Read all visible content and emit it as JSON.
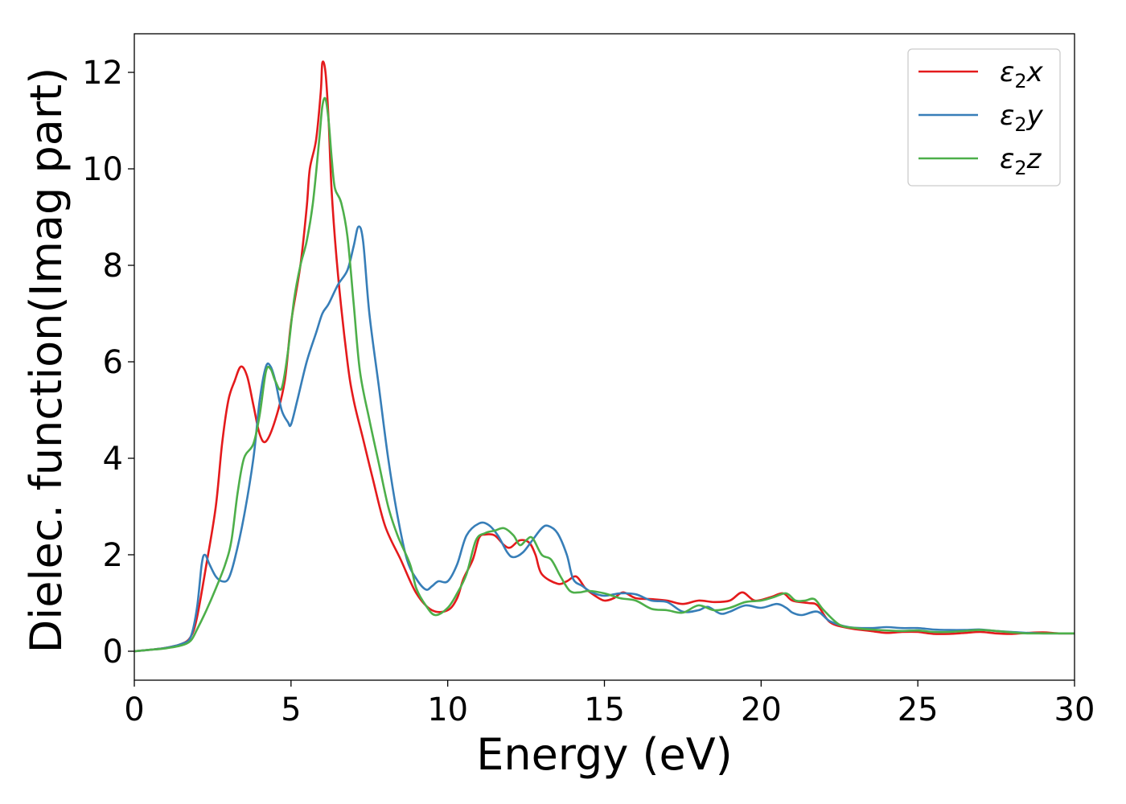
{
  "chart_data": {
    "type": "line",
    "title": "",
    "xlabel": "Energy (eV)",
    "ylabel": "Dielec. function(Imag part)",
    "xlim": [
      0,
      30
    ],
    "ylim": [
      -0.6,
      12.8
    ],
    "x_ticks": [
      0,
      5,
      10,
      15,
      20,
      25,
      30
    ],
    "y_ticks": [
      0,
      2,
      4,
      6,
      8,
      10,
      12
    ],
    "x_tick_labels": [
      "0",
      "5",
      "10",
      "15",
      "20",
      "25",
      "30"
    ],
    "y_tick_labels": [
      "0",
      "2",
      "4",
      "6",
      "8",
      "10",
      "12"
    ],
    "grid": false,
    "legend": {
      "position": "top-right",
      "entries": [
        {
          "symbol": "ε",
          "sub": "2",
          "axis": "x"
        },
        {
          "symbol": "ε",
          "sub": "2",
          "axis": "y"
        },
        {
          "symbol": "ε",
          "sub": "2",
          "axis": "z"
        }
      ]
    },
    "series": [
      {
        "color": "#e41a1c",
        "points": [
          [
            0,
            0
          ],
          [
            0.5,
            0.03
          ],
          [
            1.0,
            0.07
          ],
          [
            1.5,
            0.15
          ],
          [
            1.8,
            0.3
          ],
          [
            2.0,
            0.7
          ],
          [
            2.3,
            1.8
          ],
          [
            2.6,
            3.0
          ],
          [
            2.8,
            4.3
          ],
          [
            3.0,
            5.2
          ],
          [
            3.2,
            5.6
          ],
          [
            3.4,
            5.9
          ],
          [
            3.6,
            5.7
          ],
          [
            3.8,
            5.1
          ],
          [
            4.0,
            4.5
          ],
          [
            4.2,
            4.35
          ],
          [
            4.5,
            4.8
          ],
          [
            4.8,
            5.6
          ],
          [
            5.0,
            6.8
          ],
          [
            5.3,
            8.0
          ],
          [
            5.5,
            9.2
          ],
          [
            5.6,
            10.0
          ],
          [
            5.8,
            10.6
          ],
          [
            5.95,
            11.6
          ],
          [
            6.0,
            12.2
          ],
          [
            6.1,
            12.0
          ],
          [
            6.2,
            11.0
          ],
          [
            6.3,
            9.5
          ],
          [
            6.5,
            7.8
          ],
          [
            6.8,
            6.0
          ],
          [
            7.0,
            5.2
          ],
          [
            7.3,
            4.4
          ],
          [
            7.6,
            3.6
          ],
          [
            8.0,
            2.6
          ],
          [
            8.5,
            1.9
          ],
          [
            9.0,
            1.2
          ],
          [
            9.5,
            0.85
          ],
          [
            10.0,
            0.85
          ],
          [
            10.3,
            1.1
          ],
          [
            10.5,
            1.5
          ],
          [
            10.8,
            1.9
          ],
          [
            11.0,
            2.35
          ],
          [
            11.2,
            2.42
          ],
          [
            11.5,
            2.4
          ],
          [
            11.8,
            2.2
          ],
          [
            12.0,
            2.15
          ],
          [
            12.3,
            2.3
          ],
          [
            12.6,
            2.25
          ],
          [
            12.8,
            2.0
          ],
          [
            13.0,
            1.6
          ],
          [
            13.5,
            1.4
          ],
          [
            13.8,
            1.45
          ],
          [
            14.1,
            1.55
          ],
          [
            14.4,
            1.3
          ],
          [
            14.7,
            1.15
          ],
          [
            15.0,
            1.05
          ],
          [
            15.3,
            1.1
          ],
          [
            15.6,
            1.22
          ],
          [
            16.0,
            1.1
          ],
          [
            16.5,
            1.08
          ],
          [
            17.0,
            1.05
          ],
          [
            17.5,
            0.98
          ],
          [
            18.0,
            1.05
          ],
          [
            18.5,
            1.02
          ],
          [
            19.0,
            1.05
          ],
          [
            19.4,
            1.22
          ],
          [
            19.8,
            1.05
          ],
          [
            20.3,
            1.12
          ],
          [
            20.7,
            1.2
          ],
          [
            21.0,
            1.05
          ],
          [
            21.5,
            1.0
          ],
          [
            21.8,
            0.95
          ],
          [
            22.2,
            0.6
          ],
          [
            22.8,
            0.48
          ],
          [
            23.5,
            0.42
          ],
          [
            24.0,
            0.38
          ],
          [
            24.5,
            0.4
          ],
          [
            25.0,
            0.4
          ],
          [
            25.5,
            0.36
          ],
          [
            26.0,
            0.36
          ],
          [
            26.5,
            0.38
          ],
          [
            27.0,
            0.4
          ],
          [
            27.5,
            0.37
          ],
          [
            28.0,
            0.36
          ],
          [
            28.5,
            0.38
          ],
          [
            29.0,
            0.39
          ],
          [
            29.5,
            0.37
          ],
          [
            30.0,
            0.37
          ]
        ]
      },
      {
        "color": "#377eb8",
        "points": [
          [
            0,
            0
          ],
          [
            0.5,
            0.03
          ],
          [
            1.0,
            0.07
          ],
          [
            1.5,
            0.15
          ],
          [
            1.8,
            0.3
          ],
          [
            2.0,
            0.9
          ],
          [
            2.15,
            1.8
          ],
          [
            2.25,
            2.0
          ],
          [
            2.4,
            1.8
          ],
          [
            2.6,
            1.55
          ],
          [
            2.8,
            1.45
          ],
          [
            3.0,
            1.5
          ],
          [
            3.2,
            1.9
          ],
          [
            3.5,
            2.8
          ],
          [
            3.8,
            4.0
          ],
          [
            4.0,
            5.2
          ],
          [
            4.2,
            5.9
          ],
          [
            4.35,
            5.9
          ],
          [
            4.5,
            5.6
          ],
          [
            4.7,
            5.0
          ],
          [
            4.9,
            4.75
          ],
          [
            5.0,
            4.7
          ],
          [
            5.2,
            5.2
          ],
          [
            5.5,
            6.0
          ],
          [
            5.8,
            6.6
          ],
          [
            6.0,
            7.0
          ],
          [
            6.2,
            7.2
          ],
          [
            6.5,
            7.6
          ],
          [
            6.8,
            7.9
          ],
          [
            7.0,
            8.4
          ],
          [
            7.15,
            8.8
          ],
          [
            7.3,
            8.5
          ],
          [
            7.5,
            7.0
          ],
          [
            7.8,
            5.5
          ],
          [
            8.1,
            4.0
          ],
          [
            8.4,
            2.8
          ],
          [
            8.7,
            1.9
          ],
          [
            9.0,
            1.5
          ],
          [
            9.3,
            1.28
          ],
          [
            9.5,
            1.35
          ],
          [
            9.7,
            1.45
          ],
          [
            10.0,
            1.45
          ],
          [
            10.3,
            1.8
          ],
          [
            10.6,
            2.4
          ],
          [
            11.0,
            2.65
          ],
          [
            11.3,
            2.62
          ],
          [
            11.6,
            2.4
          ],
          [
            11.9,
            2.05
          ],
          [
            12.1,
            1.95
          ],
          [
            12.4,
            2.05
          ],
          [
            12.7,
            2.3
          ],
          [
            13.0,
            2.55
          ],
          [
            13.2,
            2.6
          ],
          [
            13.5,
            2.45
          ],
          [
            13.8,
            2.0
          ],
          [
            14.0,
            1.5
          ],
          [
            14.3,
            1.35
          ],
          [
            14.6,
            1.22
          ],
          [
            15.0,
            1.15
          ],
          [
            15.5,
            1.2
          ],
          [
            16.0,
            1.18
          ],
          [
            16.5,
            1.05
          ],
          [
            17.0,
            1.02
          ],
          [
            17.5,
            0.82
          ],
          [
            18.0,
            0.85
          ],
          [
            18.3,
            0.92
          ],
          [
            18.7,
            0.78
          ],
          [
            19.0,
            0.82
          ],
          [
            19.5,
            0.95
          ],
          [
            20.0,
            0.9
          ],
          [
            20.5,
            0.98
          ],
          [
            20.8,
            0.9
          ],
          [
            21.0,
            0.8
          ],
          [
            21.3,
            0.75
          ],
          [
            21.8,
            0.82
          ],
          [
            22.2,
            0.62
          ],
          [
            22.8,
            0.5
          ],
          [
            23.5,
            0.48
          ],
          [
            24.0,
            0.5
          ],
          [
            24.5,
            0.48
          ],
          [
            25.0,
            0.48
          ],
          [
            25.5,
            0.45
          ],
          [
            26.0,
            0.44
          ],
          [
            26.5,
            0.44
          ],
          [
            27.0,
            0.45
          ],
          [
            27.5,
            0.42
          ],
          [
            28.0,
            0.4
          ],
          [
            28.5,
            0.38
          ],
          [
            29.0,
            0.37
          ],
          [
            29.5,
            0.37
          ],
          [
            30.0,
            0.37
          ]
        ]
      },
      {
        "color": "#4daf4a",
        "points": [
          [
            0,
            0
          ],
          [
            0.5,
            0.03
          ],
          [
            1.0,
            0.06
          ],
          [
            1.5,
            0.12
          ],
          [
            1.8,
            0.22
          ],
          [
            2.0,
            0.45
          ],
          [
            2.3,
            0.85
          ],
          [
            2.6,
            1.3
          ],
          [
            2.9,
            1.8
          ],
          [
            3.1,
            2.3
          ],
          [
            3.3,
            3.3
          ],
          [
            3.5,
            4.0
          ],
          [
            3.8,
            4.3
          ],
          [
            4.0,
            4.9
          ],
          [
            4.2,
            5.8
          ],
          [
            4.35,
            5.85
          ],
          [
            4.5,
            5.6
          ],
          [
            4.7,
            5.45
          ],
          [
            4.9,
            6.2
          ],
          [
            5.1,
            7.3
          ],
          [
            5.3,
            8.0
          ],
          [
            5.5,
            8.5
          ],
          [
            5.7,
            9.3
          ],
          [
            5.9,
            10.6
          ],
          [
            6.0,
            11.3
          ],
          [
            6.1,
            11.45
          ],
          [
            6.2,
            11.0
          ],
          [
            6.3,
            10.2
          ],
          [
            6.4,
            9.6
          ],
          [
            6.6,
            9.3
          ],
          [
            6.8,
            8.6
          ],
          [
            7.0,
            7.2
          ],
          [
            7.2,
            5.8
          ],
          [
            7.5,
            4.8
          ],
          [
            7.8,
            3.9
          ],
          [
            8.1,
            3.0
          ],
          [
            8.4,
            2.4
          ],
          [
            8.8,
            1.8
          ],
          [
            9.0,
            1.3
          ],
          [
            9.3,
            0.95
          ],
          [
            9.6,
            0.75
          ],
          [
            10.0,
            0.9
          ],
          [
            10.3,
            1.2
          ],
          [
            10.6,
            1.6
          ],
          [
            10.9,
            2.3
          ],
          [
            11.2,
            2.45
          ],
          [
            11.5,
            2.5
          ],
          [
            11.8,
            2.55
          ],
          [
            12.1,
            2.4
          ],
          [
            12.3,
            2.2
          ],
          [
            12.5,
            2.3
          ],
          [
            12.7,
            2.35
          ],
          [
            13.0,
            2.0
          ],
          [
            13.3,
            1.9
          ],
          [
            13.6,
            1.55
          ],
          [
            13.9,
            1.25
          ],
          [
            14.2,
            1.22
          ],
          [
            14.5,
            1.25
          ],
          [
            15.0,
            1.2
          ],
          [
            15.5,
            1.1
          ],
          [
            16.0,
            1.05
          ],
          [
            16.5,
            0.88
          ],
          [
            17.0,
            0.85
          ],
          [
            17.5,
            0.8
          ],
          [
            18.0,
            0.95
          ],
          [
            18.5,
            0.85
          ],
          [
            19.0,
            0.9
          ],
          [
            19.5,
            1.02
          ],
          [
            20.0,
            1.05
          ],
          [
            20.4,
            1.12
          ],
          [
            20.8,
            1.2
          ],
          [
            21.1,
            1.05
          ],
          [
            21.4,
            1.05
          ],
          [
            21.7,
            1.08
          ],
          [
            22.0,
            0.85
          ],
          [
            22.5,
            0.55
          ],
          [
            23.0,
            0.48
          ],
          [
            23.5,
            0.45
          ],
          [
            24.0,
            0.43
          ],
          [
            24.5,
            0.42
          ],
          [
            25.0,
            0.43
          ],
          [
            25.5,
            0.4
          ],
          [
            26.0,
            0.4
          ],
          [
            26.5,
            0.42
          ],
          [
            27.0,
            0.44
          ],
          [
            27.5,
            0.42
          ],
          [
            28.0,
            0.39
          ],
          [
            28.5,
            0.37
          ],
          [
            29.0,
            0.37
          ],
          [
            29.5,
            0.37
          ],
          [
            30.0,
            0.37
          ]
        ]
      }
    ]
  }
}
